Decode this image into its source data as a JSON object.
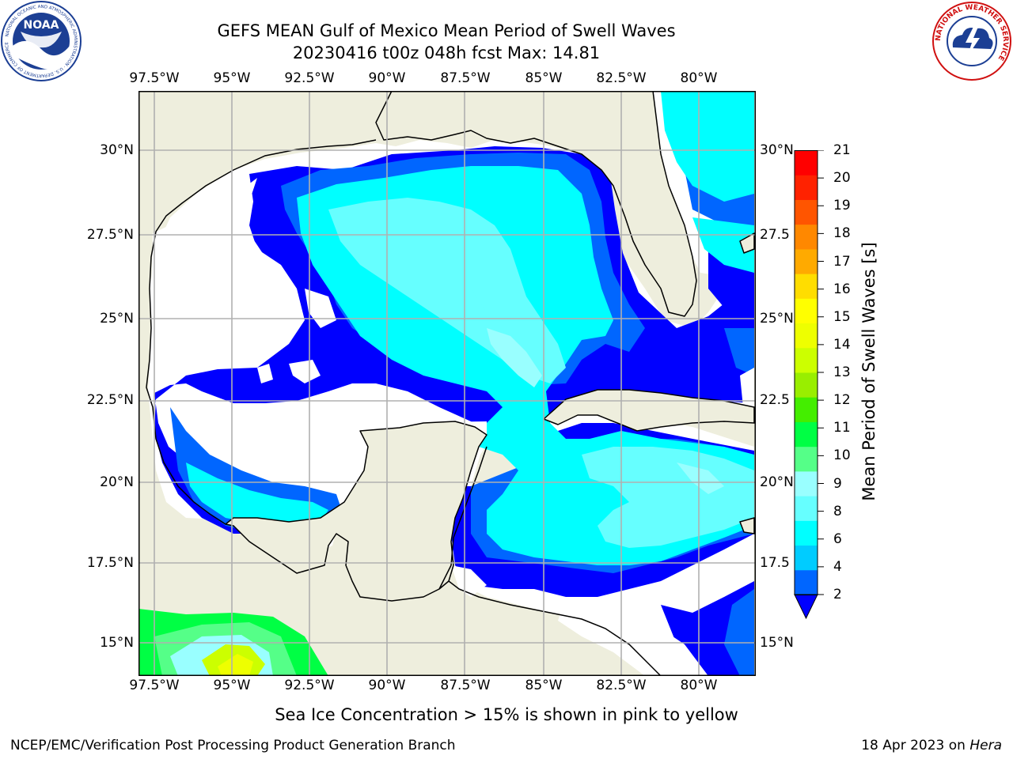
{
  "title": {
    "line1": "GEFS MEAN Gulf of Mexico Mean Period of Swell Waves",
    "line2": "20230416 t00z 048h fcst   Max: 14.81"
  },
  "logos": {
    "left": {
      "name": "NOAA",
      "text": "NOAA",
      "ring_text": "NATIONAL OCEANIC AND ATMOSPHERIC ADMINISTRATION · U.S. DEPARTMENT OF COMMERCE"
    },
    "right": {
      "name": "National Weather Service",
      "ring_text": "NATIONAL WEATHER SERVICE"
    }
  },
  "map": {
    "lon_labels": [
      "97.5°W",
      "95°W",
      "92.5°W",
      "90°W",
      "87.5°W",
      "85°W",
      "82.5°W",
      "80°W"
    ],
    "lat_labels_left": [
      "30°N",
      "27.5°N",
      "25°N",
      "22.5°N",
      "20°N",
      "17.5°N",
      "15°N"
    ],
    "lat_labels_right": [
      "30°N",
      "27.5",
      "25°N",
      "22.5",
      "20°N",
      "17.5",
      "15°N"
    ],
    "colors": {
      "land": "#eeeedd",
      "ocean_missing": "#ffffff",
      "grid": "#b0b0b0",
      "coast": "#000000"
    }
  },
  "colorbar": {
    "title": "Mean Period of Swell Waves [s]",
    "ticks": [
      "21",
      "20",
      "19",
      "18",
      "17",
      "16",
      "15",
      "14",
      "13",
      "12",
      "11",
      "10",
      "9",
      "8",
      "6",
      "4",
      "2"
    ],
    "colors_bottom_to_top": [
      "#0066ff",
      "#00ccff",
      "#00ffff",
      "#66ffff",
      "#99ffff",
      "#55ff88",
      "#00ff44",
      "#44ee00",
      "#99ee00",
      "#ccff00",
      "#eeff00",
      "#ffff00",
      "#ffdd00",
      "#ffaa00",
      "#ff8800",
      "#ff5500",
      "#ff2200",
      "#ff0000"
    ],
    "under_color": "#0000ff"
  },
  "caption": "Sea Ice Concentration > 15% is shown in pink to yellow",
  "footer": {
    "left": "NCEP/EMC/Verification Post Processing Product Generation Branch",
    "right_prefix": "18 Apr 2023 on ",
    "right_host": "Hera"
  }
}
